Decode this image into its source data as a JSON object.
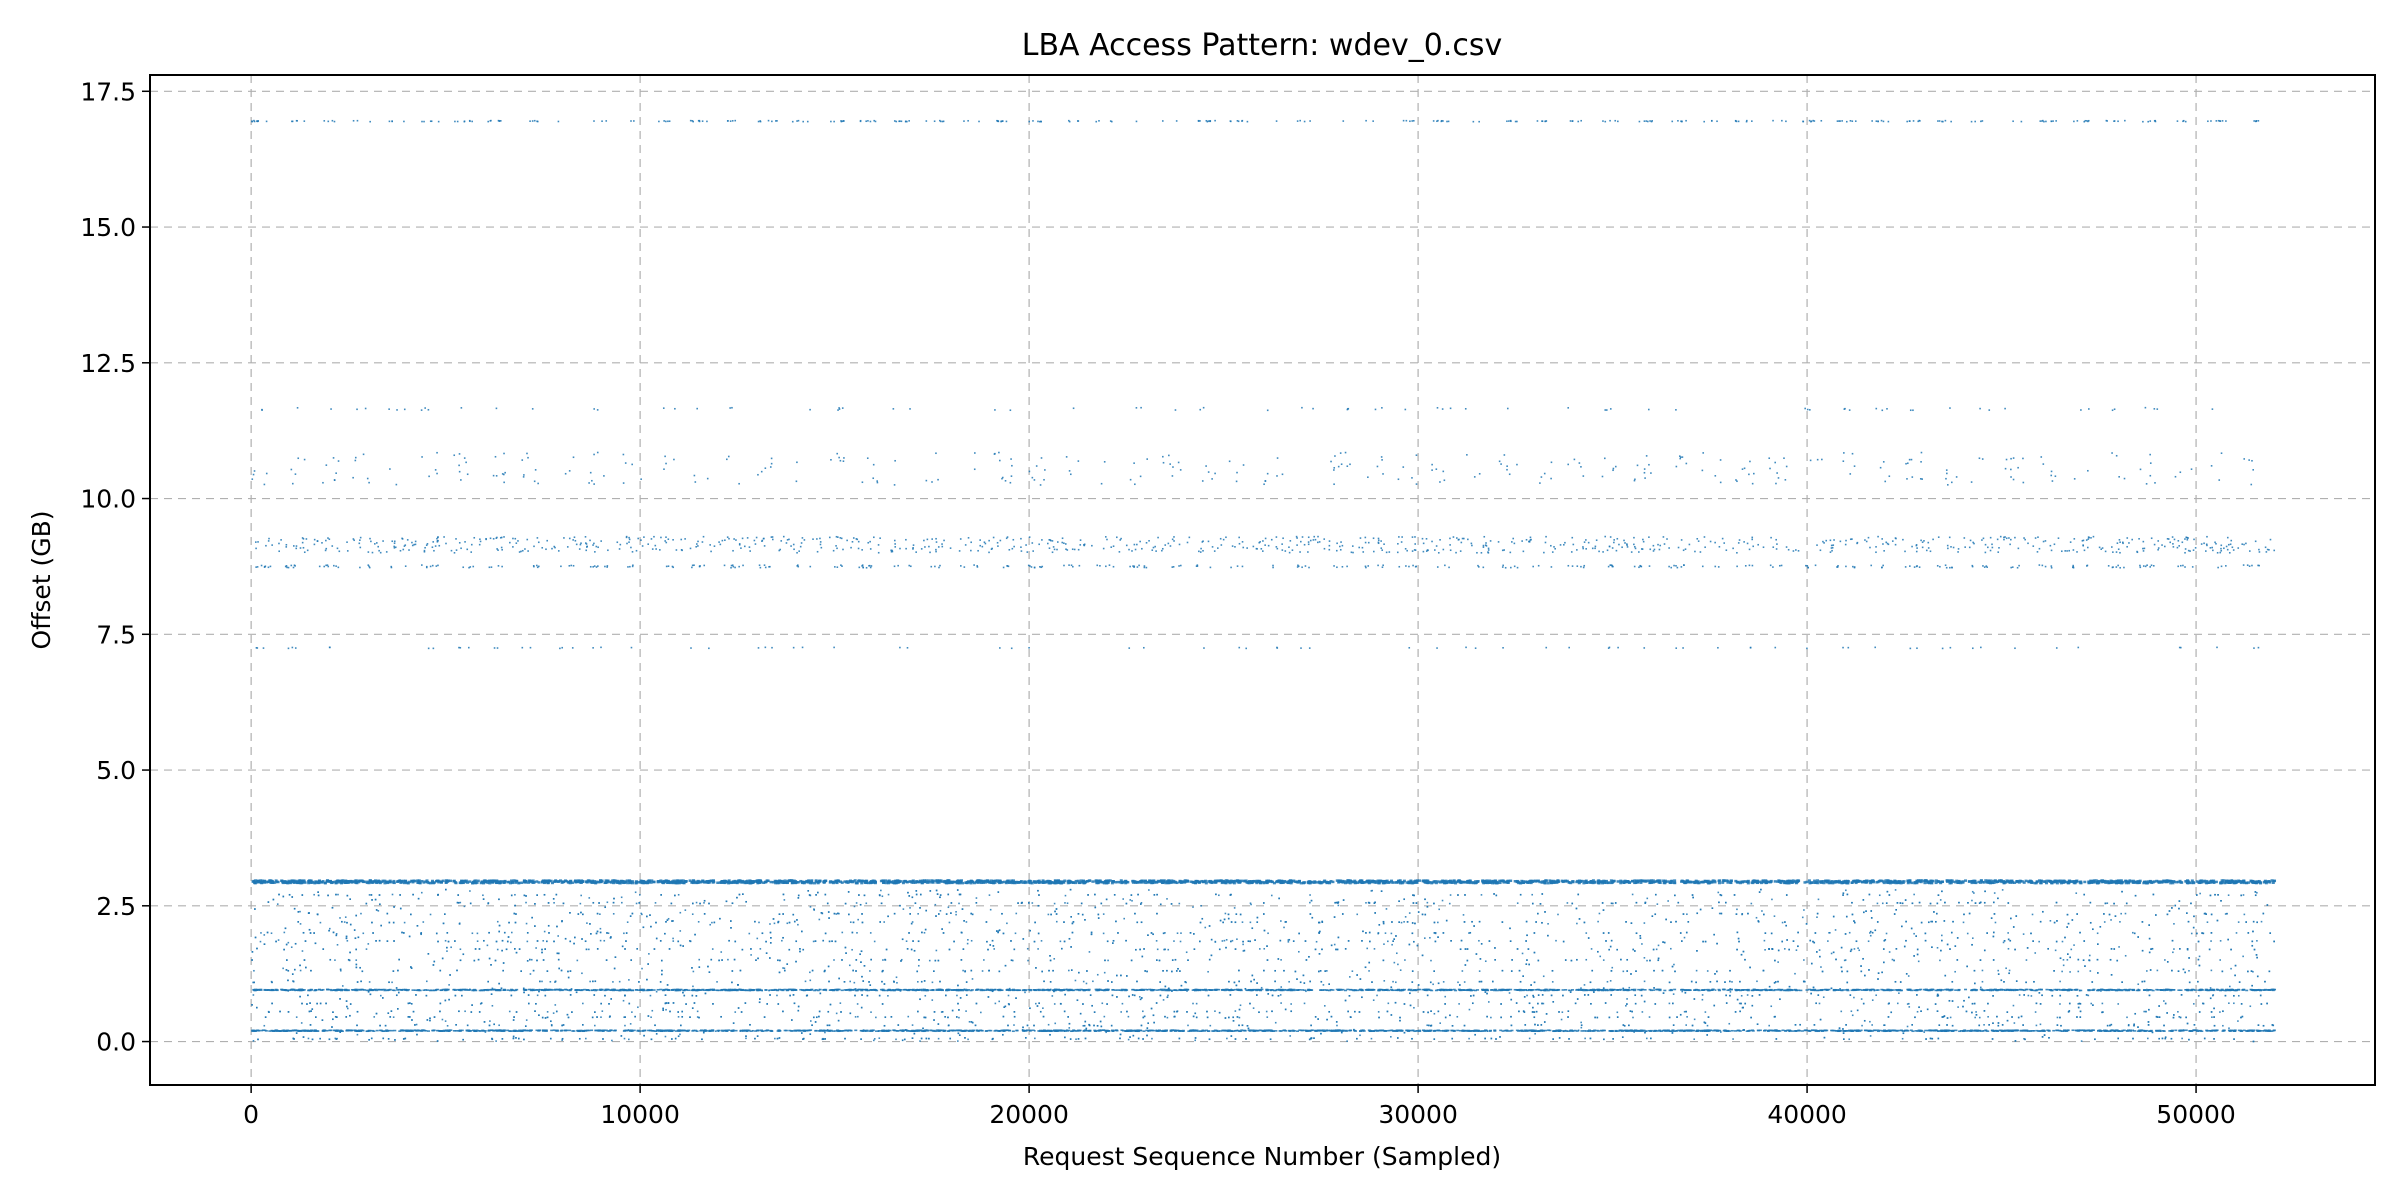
{
  "chart_data": {
    "type": "scatter",
    "title": "LBA Access Pattern: wdev_0.csv",
    "xlabel": "Request Sequence Number (Sampled)",
    "ylabel": "Offset (GB)",
    "xlim": [
      -2600,
      54600
    ],
    "ylim": [
      -0.8,
      17.8
    ],
    "xticks": [
      0,
      10000,
      20000,
      30000,
      40000,
      50000
    ],
    "xtick_labels": [
      "0",
      "10000",
      "20000",
      "30000",
      "40000",
      "50000"
    ],
    "yticks": [
      0.0,
      2.5,
      5.0,
      7.5,
      10.0,
      12.5,
      15.0,
      17.5
    ],
    "ytick_labels": [
      "0.0",
      "2.5",
      "5.0",
      "7.5",
      "10.0",
      "12.5",
      "15.0",
      "17.5"
    ],
    "grid": true,
    "grid_style": "dashed",
    "series_color": "#1f77b4",
    "point_count_x_range": [
      0,
      52000
    ],
    "bands": [
      {
        "offset_gb": 16.95,
        "spread": 0.02,
        "density": "sparse",
        "note_x_coverage": "intermittent"
      },
      {
        "offset_gb": 11.65,
        "spread": 0.05,
        "density": "very-sparse"
      },
      {
        "offset_gb": 10.55,
        "spread": 0.6,
        "density": "sparse"
      },
      {
        "offset_gb": 9.15,
        "spread": 0.3,
        "density": "medium"
      },
      {
        "offset_gb": 8.75,
        "spread": 0.05,
        "density": "sparse"
      },
      {
        "offset_gb": 7.25,
        "spread": 0.02,
        "density": "very-sparse"
      },
      {
        "offset_gb": 2.95,
        "spread": 0.05,
        "density": "very-dense"
      },
      {
        "offset_gb": 1.5,
        "spread": 1.5,
        "density": "dense"
      },
      {
        "offset_gb": 0.95,
        "spread": 0.02,
        "density": "dense-line"
      },
      {
        "offset_gb": 0.2,
        "spread": 0.02,
        "density": "dense-line"
      }
    ]
  }
}
